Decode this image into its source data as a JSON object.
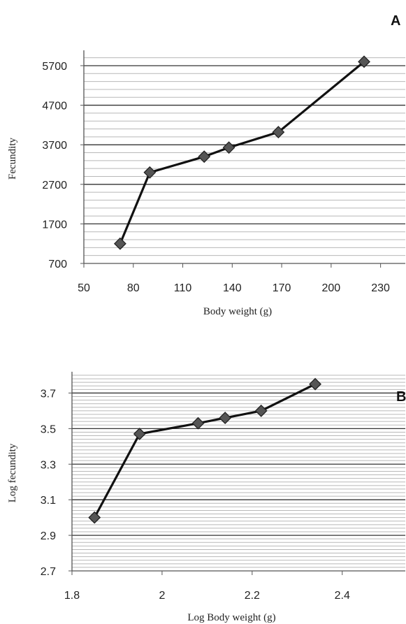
{
  "chart_data": [
    {
      "type": "line",
      "panel_label": "A",
      "xlabel": "Body weight (g)",
      "ylabel": "Fecundity",
      "xlim": [
        50,
        245
      ],
      "ylim": [
        700,
        6000
      ],
      "x_ticks": [
        50,
        80,
        110,
        140,
        170,
        200,
        230
      ],
      "y_ticks": [
        700,
        1700,
        2700,
        3700,
        4700,
        5700
      ],
      "grid": true,
      "marker": "diamond",
      "series": [
        {
          "x": [
            72,
            90,
            123,
            138,
            168,
            220
          ],
          "y": [
            1200,
            3000,
            3400,
            3630,
            4020,
            5800
          ]
        }
      ]
    },
    {
      "type": "line",
      "panel_label": "B",
      "xlabel": "Log Body weight (g)",
      "ylabel": "Log fecundity",
      "xlim": [
        1.8,
        2.54
      ],
      "ylim": [
        2.7,
        3.8
      ],
      "x_ticks": [
        1.8,
        2,
        2.2,
        2.4
      ],
      "y_ticks": [
        2.7,
        2.9,
        3.1,
        3.3,
        3.5,
        3.7
      ],
      "grid": true,
      "marker": "diamond",
      "series": [
        {
          "x": [
            1.85,
            1.95,
            2.08,
            2.14,
            2.22,
            2.34
          ],
          "y": [
            3.0,
            3.47,
            3.53,
            3.56,
            3.6,
            3.75
          ]
        }
      ]
    }
  ],
  "colors": {
    "line": "#111111",
    "marker_fill": "#555555",
    "major_grid": "#333333",
    "minor_grid": "#b8b8b8",
    "axis": "#555555"
  }
}
